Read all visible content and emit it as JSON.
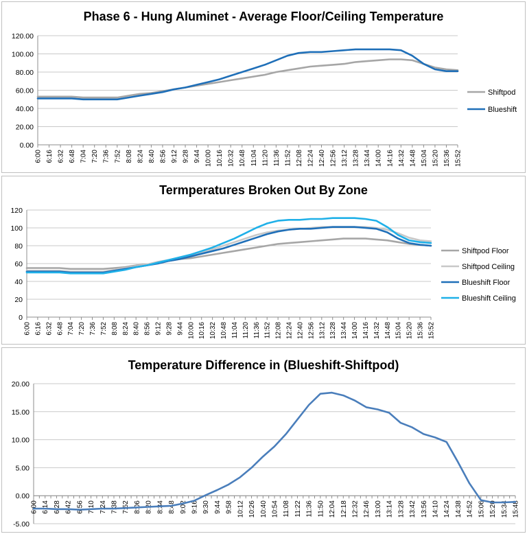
{
  "chart_data": [
    {
      "type": "line",
      "title": "Phase 6 - Hung Aluminet - Average Floor/Ceiling Temperature",
      "ylim": [
        0,
        120
      ],
      "yticks": [
        "0.00",
        "20.00",
        "40.00",
        "60.00",
        "80.00",
        "100.00",
        "120.00"
      ],
      "grid": true,
      "legend": "right",
      "x": [
        "6:00",
        "6:16",
        "6:32",
        "6:48",
        "7:04",
        "7:20",
        "7:36",
        "7:52",
        "8:08",
        "8:24",
        "8:40",
        "8:56",
        "9:12",
        "9:28",
        "9:44",
        "10:00",
        "10:16",
        "10:32",
        "10:48",
        "11:04",
        "11:20",
        "11:36",
        "11:52",
        "12:08",
        "12:24",
        "12:40",
        "12:56",
        "13:12",
        "13:28",
        "13:44",
        "14:00",
        "14:16",
        "14:32",
        "14:48",
        "15:04",
        "15:20",
        "15:36",
        "15:52"
      ],
      "series": [
        {
          "name": "Shiftpod",
          "color": "#a6a6a6",
          "values": [
            53,
            53,
            53,
            53,
            52,
            52,
            52,
            52,
            54,
            56,
            57,
            59,
            61,
            63,
            65,
            67,
            69,
            71,
            73,
            75,
            77,
            80,
            82,
            84,
            86,
            87,
            88,
            89,
            91,
            92,
            93,
            94,
            94,
            93,
            89,
            85,
            83,
            82
          ]
        },
        {
          "name": "Blueshift",
          "color": "#1f6fb8",
          "values": [
            51,
            51,
            51,
            51,
            50,
            50,
            50,
            50,
            52,
            54,
            56,
            58,
            61,
            63,
            66,
            69,
            72,
            76,
            80,
            84,
            88,
            93,
            98,
            101,
            102,
            102,
            103,
            104,
            105,
            105,
            105,
            105,
            104,
            98,
            89,
            83,
            81,
            81
          ]
        }
      ]
    },
    {
      "type": "line",
      "title": "Termperatures Broken Out By Zone",
      "ylim": [
        0,
        120
      ],
      "yticks": [
        "0",
        "20",
        "40",
        "60",
        "80",
        "100",
        "120"
      ],
      "grid": true,
      "legend": "right",
      "x": [
        "6:00",
        "6:16",
        "6:32",
        "6:48",
        "7:04",
        "7:20",
        "7:36",
        "7:52",
        "8:08",
        "8:24",
        "8:40",
        "8:56",
        "9:12",
        "9:28",
        "9:44",
        "10:00",
        "10:16",
        "10:32",
        "10:48",
        "11:04",
        "11:20",
        "11:36",
        "11:52",
        "12:08",
        "12:24",
        "12:40",
        "12:56",
        "13:12",
        "13:28",
        "13:44",
        "14:00",
        "14:16",
        "14:32",
        "14:48",
        "15:04",
        "15:20",
        "15:36",
        "15:52"
      ],
      "series": [
        {
          "name": "Shiftpod Floor",
          "color": "#a6a6a6",
          "values": [
            55,
            55,
            55,
            55,
            54,
            54,
            54,
            54,
            55,
            56,
            58,
            59,
            61,
            63,
            65,
            66,
            68,
            70,
            72,
            74,
            76,
            78,
            80,
            82,
            83,
            84,
            85,
            86,
            87,
            88,
            88,
            88,
            87,
            86,
            84,
            82,
            81,
            80
          ]
        },
        {
          "name": "Shiftpod Ceiling",
          "color": "#c8c8c8",
          "values": [
            52,
            52,
            52,
            52,
            51,
            51,
            51,
            51,
            53,
            55,
            57,
            59,
            62,
            64,
            67,
            70,
            73,
            76,
            80,
            84,
            88,
            92,
            95,
            97,
            98,
            99,
            100,
            101,
            101,
            101,
            101,
            101,
            100,
            98,
            94,
            89,
            86,
            85
          ]
        },
        {
          "name": "Blueshift Floor",
          "color": "#1f6fb8",
          "values": [
            51,
            51,
            51,
            51,
            50,
            50,
            50,
            50,
            52,
            54,
            56,
            58,
            60,
            63,
            65,
            68,
            71,
            74,
            77,
            81,
            85,
            89,
            93,
            96,
            98,
            99,
            99,
            100,
            101,
            101,
            101,
            100,
            99,
            95,
            88,
            83,
            81,
            80
          ]
        },
        {
          "name": "Blueshift Ceiling",
          "color": "#1fb0e8",
          "values": [
            50,
            50,
            50,
            50,
            49,
            49,
            49,
            49,
            51,
            53,
            56,
            58,
            61,
            64,
            67,
            70,
            74,
            78,
            83,
            88,
            94,
            100,
            105,
            108,
            109,
            109,
            110,
            110,
            111,
            111,
            111,
            110,
            108,
            101,
            92,
            86,
            84,
            83
          ]
        }
      ]
    },
    {
      "type": "line",
      "title": "Temperature Difference in (Blueshift-Shiftpod)",
      "ylim": [
        -5,
        20
      ],
      "yticks": [
        "-5.00",
        "0.00",
        "5.00",
        "10.00",
        "15.00",
        "20.00"
      ],
      "grid": true,
      "legend": "none",
      "x": [
        "6:00",
        "6:14",
        "6:28",
        "6:42",
        "6:56",
        "7:10",
        "7:24",
        "7:38",
        "7:52",
        "8:06",
        "8:20",
        "8:34",
        "8:48",
        "9:02",
        "9:16",
        "9:30",
        "9:44",
        "9:58",
        "10:12",
        "10:26",
        "10:40",
        "10:54",
        "11:08",
        "11:22",
        "11:36",
        "11:50",
        "12:04",
        "12:18",
        "12:32",
        "12:46",
        "13:00",
        "13:14",
        "13:28",
        "13:42",
        "13:56",
        "14:10",
        "14:24",
        "14:38",
        "14:52",
        "15:06",
        "15:20",
        "15:34",
        "15:48"
      ],
      "series": [
        {
          "name": "",
          "color": "#4a7ebb",
          "values": [
            -2.3,
            -2.3,
            -2.4,
            -2.4,
            -2.5,
            -2.4,
            -2.3,
            -2.3,
            -2.2,
            -2.1,
            -2.0,
            -1.9,
            -1.8,
            -1.4,
            -0.9,
            0.1,
            1.0,
            2.0,
            3.3,
            5.0,
            7.0,
            8.8,
            11.0,
            13.6,
            16.2,
            18.2,
            18.4,
            17.9,
            17.0,
            15.8,
            15.4,
            14.8,
            13.0,
            12.2,
            11.0,
            10.4,
            9.6,
            6.0,
            2.2,
            -0.8,
            -1.2,
            -1.2,
            -1.1
          ]
        }
      ]
    }
  ]
}
